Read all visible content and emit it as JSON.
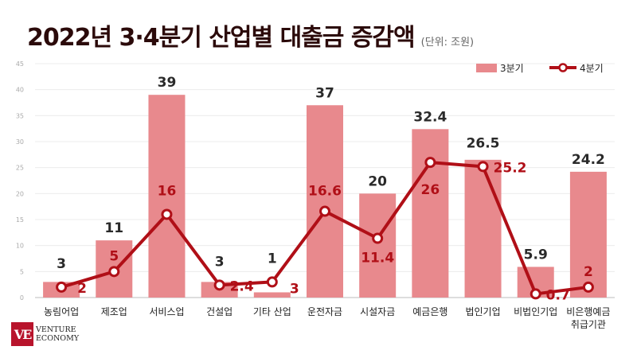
{
  "title": "2022년 3·4분기 산업별 대출금 증감액",
  "unit": "(단위: 조원)",
  "logo": {
    "mark": "VE",
    "line1": "VENTURE",
    "line2": "ECONOMY"
  },
  "colors": {
    "bar": "#e8898d",
    "line": "#b00f17",
    "title": "#2b0a0a"
  },
  "chart_data": {
    "type": "bar+line",
    "categories": [
      "농림어업",
      "제조업",
      "서비스업",
      "건설업",
      "기타 산업",
      "운전자금",
      "시설자금",
      "예금은행",
      "법인기업",
      "비법인기업",
      "비은행예금\n취급기관"
    ],
    "series": [
      {
        "name": "3분기",
        "type": "bar",
        "values": [
          3,
          11,
          39,
          3,
          1,
          37,
          20,
          32.4,
          26.5,
          5.9,
          24.2
        ],
        "labels": [
          "3",
          "11",
          "39",
          "3",
          "1",
          "37",
          "20",
          "32.4",
          "26.5",
          "5.9",
          "24.2"
        ]
      },
      {
        "name": "4분기",
        "type": "line",
        "values": [
          2,
          5,
          16,
          2.4,
          3,
          16.6,
          11.4,
          26,
          25.2,
          0.7,
          2
        ],
        "labels": [
          "2",
          "5",
          "16",
          "2.4",
          "3",
          "16.6",
          "11.4",
          "26",
          "25.2",
          "0.7",
          "2"
        ]
      }
    ],
    "ylim": [
      0,
      45
    ],
    "yticks": [
      0,
      5,
      10,
      15,
      20,
      25,
      30,
      35,
      40,
      45
    ],
    "grid": true,
    "legend": "top-right"
  }
}
